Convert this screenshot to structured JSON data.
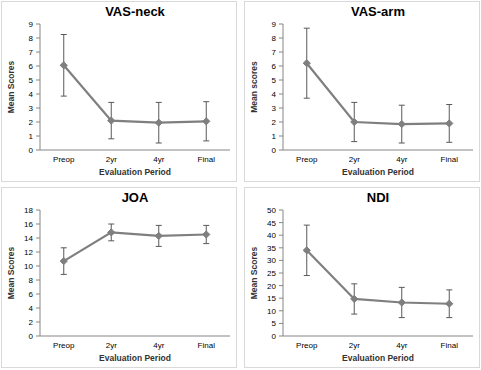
{
  "chart_data": [
    {
      "type": "line",
      "title": "VAS-neck",
      "x_label": "Evaluation Period",
      "y_label": "Mean Scores",
      "categories": [
        "Preop",
        "2yr",
        "4yr",
        "Final"
      ],
      "values": [
        6.05,
        2.1,
        1.95,
        2.05
      ],
      "errors": [
        2.2,
        1.3,
        1.45,
        1.4
      ],
      "color": "#7f7f7f",
      "marker": "diamond",
      "ylim": [
        0,
        9
      ],
      "yticks": [
        0,
        1,
        2,
        3,
        4,
        5,
        6,
        7,
        8,
        9
      ],
      "grid": false
    },
    {
      "type": "line",
      "title": "VAS-arm",
      "x_label": "Evaluation Period",
      "y_label": "Mean scores",
      "categories": [
        "Preop",
        "2yr",
        "4yr",
        "Final"
      ],
      "values": [
        6.2,
        2.0,
        1.85,
        1.9
      ],
      "errors": [
        2.5,
        1.4,
        1.35,
        1.35
      ],
      "color": "#7f7f7f",
      "marker": "diamond",
      "ylim": [
        0,
        9
      ],
      "yticks": [
        0,
        1,
        2,
        3,
        4,
        5,
        6,
        7,
        8,
        9
      ],
      "grid": false
    },
    {
      "type": "line",
      "title": "JOA",
      "x_label": "Evaluation Period",
      "y_label": "Mean Scores",
      "categories": [
        "Preop",
        "2yr",
        "4yr",
        "Final"
      ],
      "values": [
        10.7,
        14.8,
        14.3,
        14.5
      ],
      "errors": [
        1.9,
        1.2,
        1.5,
        1.3
      ],
      "color": "#7f7f7f",
      "marker": "diamond",
      "ylim": [
        0,
        18
      ],
      "yticks": [
        0,
        2,
        4,
        6,
        8,
        10,
        12,
        14,
        16,
        18
      ],
      "grid": false
    },
    {
      "type": "line",
      "title": "NDI",
      "x_label": "Evaluation Period",
      "y_label": "Mean Scores",
      "categories": [
        "Preop",
        "2yr",
        "4yr",
        "Final"
      ],
      "values": [
        34,
        14.7,
        13.3,
        12.8
      ],
      "errors": [
        10,
        6,
        6,
        5.5
      ],
      "color": "#7f7f7f",
      "marker": "diamond",
      "ylim": [
        0,
        50
      ],
      "yticks": [
        0,
        5,
        10,
        15,
        20,
        25,
        30,
        35,
        40,
        45,
        50
      ],
      "grid": false
    }
  ]
}
